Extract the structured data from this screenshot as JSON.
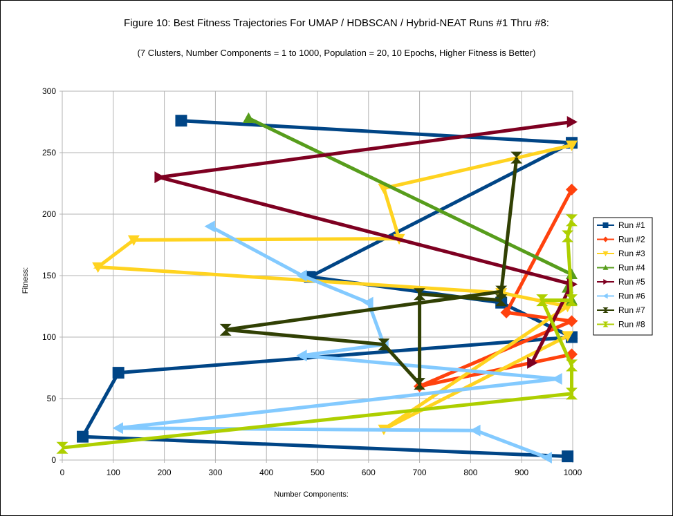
{
  "chart_data": {
    "type": "line",
    "title": "Figure 10: Best Fitness Trajectories For UMAP / HDBSCAN / Hybrid-NEAT Runs #1 Thru #8:",
    "subtitle": "(7 Clusters, Number Components = 1 to 1000, Population = 20, 10 Epochs, Higher Fitness is Better)",
    "xlabel": "Number Components:",
    "ylabel": "Fitness:",
    "xlim": [
      0,
      1000
    ],
    "ylim": [
      0,
      300
    ],
    "xticks": [
      "0",
      "100",
      "200",
      "300",
      "400",
      "500",
      "600",
      "700",
      "800",
      "900",
      "1000"
    ],
    "yticks": [
      "0",
      "50",
      "100",
      "150",
      "200",
      "250",
      "300"
    ],
    "grid": true,
    "legend_position": "right",
    "series": [
      {
        "name": "Run #1",
        "color": "#004586",
        "marker": "square",
        "points": [
          [
            233,
            276
          ],
          [
            998,
            258
          ],
          [
            485,
            149
          ],
          [
            860,
            128
          ],
          [
            998,
            100
          ],
          [
            110,
            71
          ],
          [
            40,
            19
          ],
          [
            990,
            3
          ]
        ]
      },
      {
        "name": "Run #2",
        "color": "#ff420e",
        "marker": "diamond",
        "points": [
          [
            998,
            220
          ],
          [
            870,
            120
          ],
          [
            998,
            113
          ],
          [
            700,
            60
          ],
          [
            998,
            86
          ]
        ]
      },
      {
        "name": "Run #3",
        "color": "#ffd320",
        "marker": "triangle-down",
        "points": [
          [
            998,
            256
          ],
          [
            630,
            221
          ],
          [
            660,
            180
          ],
          [
            140,
            179
          ],
          [
            70,
            157
          ],
          [
            860,
            136
          ],
          [
            990,
            125
          ],
          [
            630,
            25
          ],
          [
            990,
            101
          ]
        ]
      },
      {
        "name": "Run #4",
        "color": "#579d1c",
        "marker": "triangle-up",
        "points": [
          [
            365,
            278
          ],
          [
            998,
            151
          ],
          [
            990,
            140
          ],
          [
            998,
            130
          ]
        ]
      },
      {
        "name": "Run #5",
        "color": "#7e0021",
        "marker": "triangle-right",
        "points": [
          [
            998,
            275
          ],
          [
            190,
            230
          ],
          [
            998,
            143
          ],
          [
            920,
            79
          ]
        ]
      },
      {
        "name": "Run #6",
        "color": "#83caff",
        "marker": "triangle-left",
        "points": [
          [
            290,
            190
          ],
          [
            470,
            150
          ],
          [
            600,
            128
          ],
          [
            630,
            94
          ],
          [
            470,
            85
          ],
          [
            970,
            66
          ],
          [
            110,
            26
          ],
          [
            810,
            24
          ],
          [
            950,
            2
          ]
        ]
      },
      {
        "name": "Run #7",
        "color": "#314004",
        "marker": "bowtie",
        "points": [
          [
            890,
            246
          ],
          [
            860,
            137
          ],
          [
            320,
            106
          ],
          [
            630,
            94
          ],
          [
            700,
            62
          ],
          [
            700,
            135
          ],
          [
            860,
            130
          ]
        ]
      },
      {
        "name": "Run #8",
        "color": "#aecf00",
        "marker": "hourglass",
        "points": [
          [
            998,
            195
          ],
          [
            990,
            182
          ],
          [
            998,
            130
          ],
          [
            940,
            130
          ],
          [
            998,
            77
          ],
          [
            998,
            54
          ],
          [
            0,
            10
          ]
        ]
      }
    ]
  }
}
